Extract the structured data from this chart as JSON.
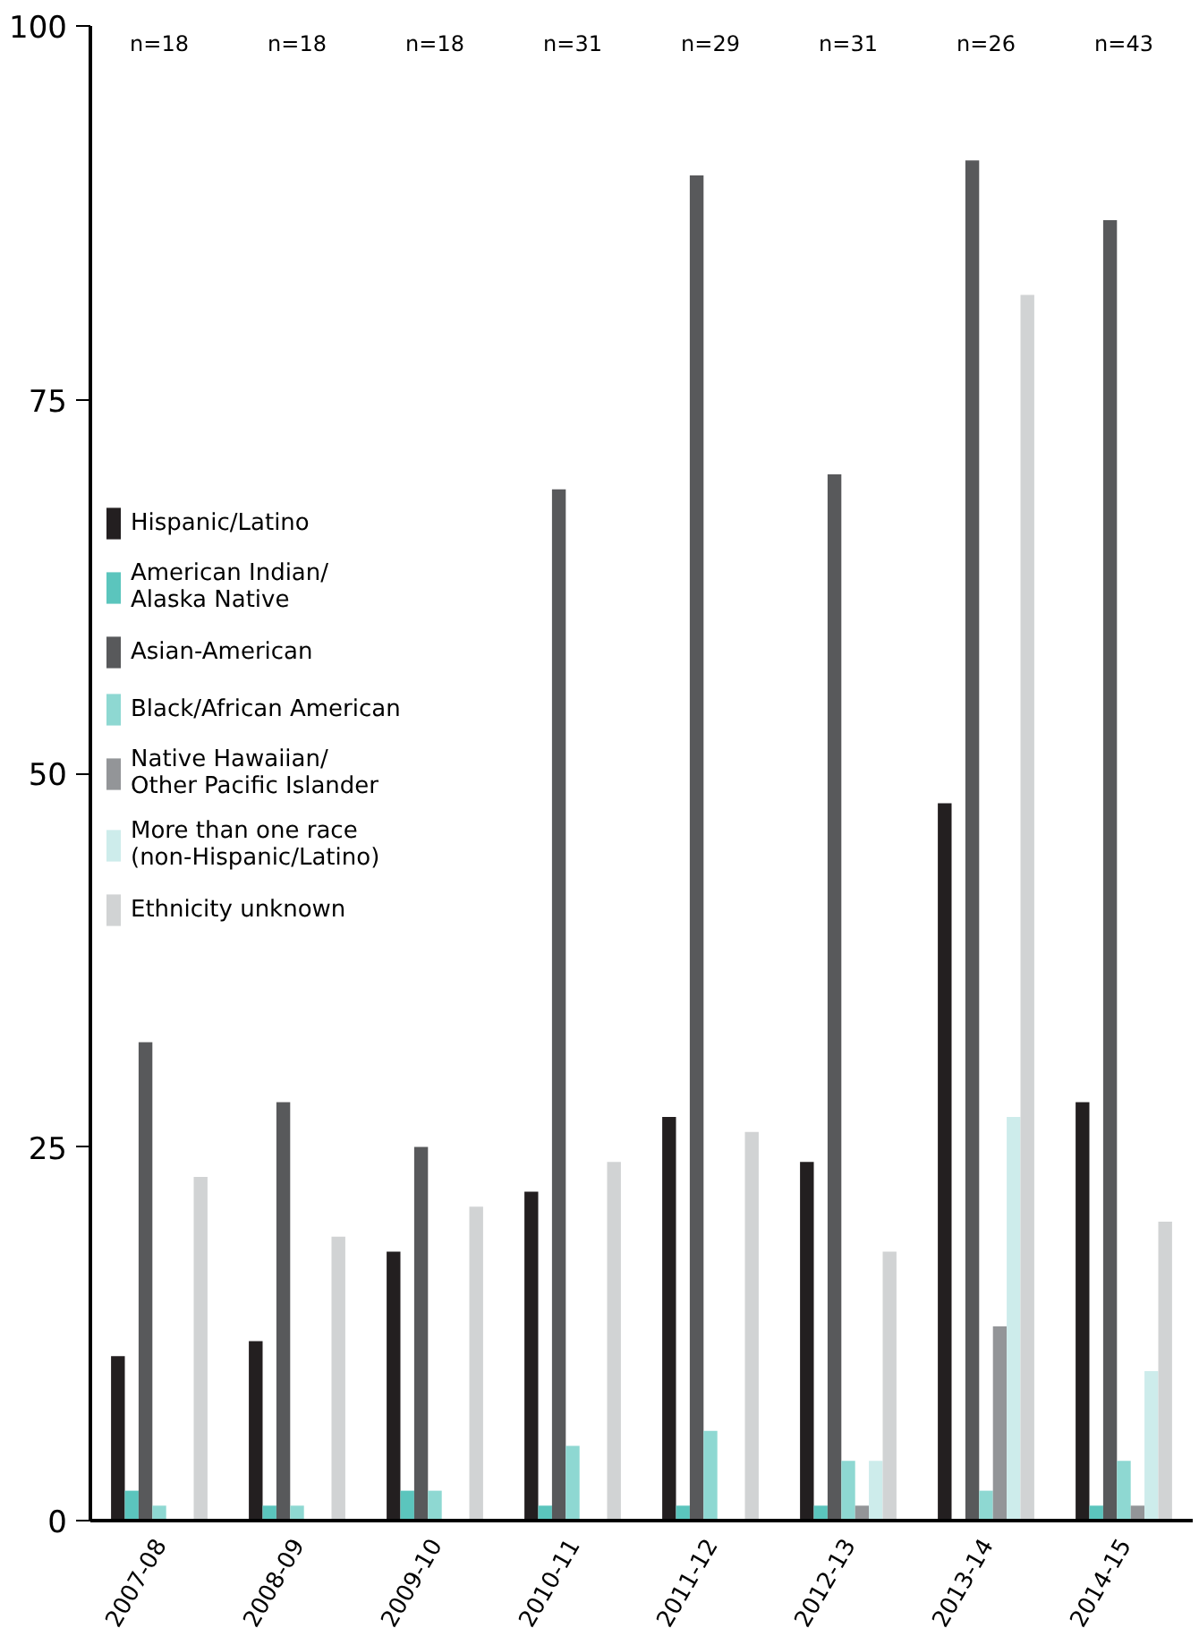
{
  "chart_data": {
    "type": "bar",
    "categories": [
      "2007-08",
      "2008-09",
      "2009-10",
      "2010-11",
      "2011-12",
      "2012-13",
      "2013-14",
      "2014-15"
    ],
    "series": [
      {
        "name": "Hispanic/Latino",
        "color": "#231f20",
        "values": [
          11,
          12,
          18,
          22,
          27,
          24,
          48,
          28
        ]
      },
      {
        "name": "American Indian/\nAlaska Native",
        "color": "#5bc5bd",
        "values": [
          2,
          1,
          2,
          1,
          1,
          1,
          0,
          1
        ]
      },
      {
        "name": "Asian-American",
        "color": "#58595b",
        "values": [
          32,
          28,
          25,
          69,
          90,
          70,
          91,
          87
        ]
      },
      {
        "name": "Black/African American",
        "color": "#8ed8d2",
        "values": [
          1,
          1,
          2,
          5,
          6,
          4,
          2,
          4
        ]
      },
      {
        "name": "Native Hawaiian/\nOther Pacific Islander",
        "color": "#939598",
        "values": [
          0,
          0,
          0,
          0,
          0,
          1,
          13,
          1
        ]
      },
      {
        "name": "More than one race\n(non-Hispanic/Latino)",
        "color": "#cdeceb",
        "values": [
          0,
          0,
          0,
          0,
          0,
          4,
          27,
          10
        ]
      },
      {
        "name": "Ethnicity unknown",
        "color": "#d1d3d4",
        "values": [
          23,
          19,
          21,
          24,
          26,
          18,
          82,
          20
        ]
      }
    ],
    "ylim": [
      0,
      100
    ],
    "yticks": [
      0,
      25,
      50,
      75,
      100
    ],
    "grid": false,
    "legend": "left",
    "annotations": [
      "n=18",
      "n=18",
      "n=18",
      "n=31",
      "n=29",
      "n=31",
      "n=26",
      "n=43"
    ]
  }
}
